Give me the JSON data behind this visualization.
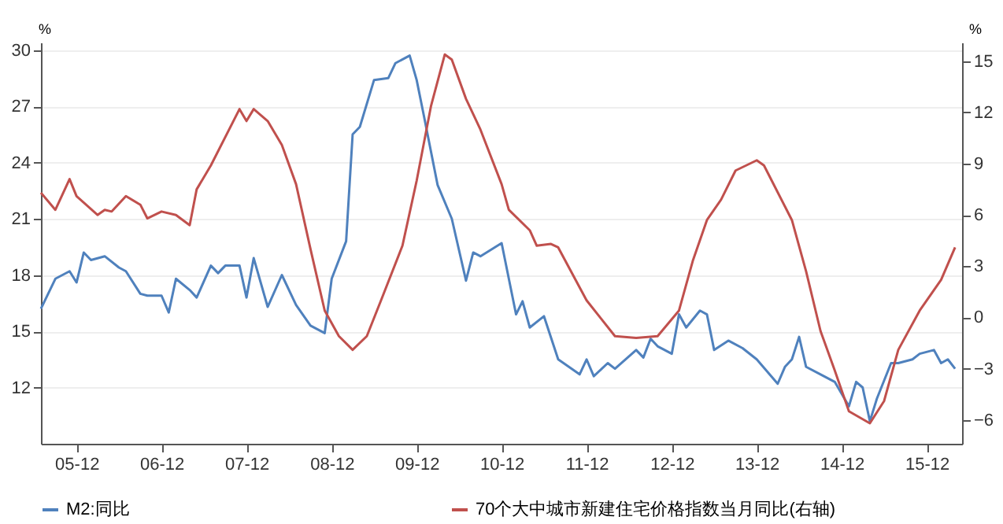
{
  "chart_data": {
    "type": "line",
    "ylabel": "%",
    "y2label": "%",
    "xlim": [
      "2005-07",
      "2016-05"
    ],
    "xticks": [
      {
        "value": "2005-12",
        "label": "05-12"
      },
      {
        "value": "2006-12",
        "label": "06-12"
      },
      {
        "value": "2007-12",
        "label": "07-12"
      },
      {
        "value": "2008-12",
        "label": "08-12"
      },
      {
        "value": "2009-12",
        "label": "09-12"
      },
      {
        "value": "2010-12",
        "label": "10-12"
      },
      {
        "value": "2011-12",
        "label": "11-12"
      },
      {
        "value": "2012-12",
        "label": "12-12"
      },
      {
        "value": "2013-12",
        "label": "13-12"
      },
      {
        "value": "2014-12",
        "label": "14-12"
      },
      {
        "value": "2015-12",
        "label": "15-12"
      }
    ],
    "ylim": [
      9,
      30.4
    ],
    "yticks": [
      12,
      15,
      18,
      21,
      24,
      27,
      30
    ],
    "y2lim": [
      -7.4,
      16.1
    ],
    "y2ticks": [
      -6,
      -3,
      0,
      3,
      6,
      9,
      12,
      15
    ],
    "grid": "y",
    "legend": "bottom",
    "marker": "none",
    "line_style": "solid",
    "series": [
      {
        "name": "M2:同比",
        "color": "#4f81bd",
        "x": [
          "2005-07",
          "2005-09",
          "2005-11",
          "2005-12",
          "2006-01",
          "2006-02",
          "2006-04",
          "2006-06",
          "2006-07",
          "2006-09",
          "2006-10",
          "2006-12",
          "2007-01",
          "2007-02",
          "2007-04",
          "2007-05",
          "2007-07",
          "2007-08",
          "2007-09",
          "2007-11",
          "2007-12",
          "2008-01",
          "2008-03",
          "2008-05",
          "2008-07",
          "2008-09",
          "2008-11",
          "2008-12",
          "2009-02",
          "2009-03",
          "2009-04",
          "2009-06",
          "2009-08",
          "2009-09",
          "2009-11",
          "2009-12",
          "2010-01",
          "2010-03",
          "2010-05",
          "2010-07",
          "2010-08",
          "2010-09",
          "2010-12",
          "2011-02",
          "2011-03",
          "2011-04",
          "2011-06",
          "2011-08",
          "2011-11",
          "2011-12",
          "2012-01",
          "2012-03",
          "2012-04",
          "2012-07",
          "2012-08",
          "2012-09",
          "2012-10",
          "2012-12",
          "2013-01",
          "2013-02",
          "2013-04",
          "2013-05",
          "2013-06",
          "2013-08",
          "2013-10",
          "2013-12",
          "2014-03",
          "2014-04",
          "2014-05",
          "2014-06",
          "2014-07",
          "2014-09",
          "2014-11",
          "2015-01",
          "2015-02",
          "2015-03",
          "2015-04",
          "2015-05",
          "2015-07",
          "2015-08",
          "2015-10",
          "2015-11",
          "2016-01",
          "2016-02",
          "2016-03",
          "2016-04"
        ],
        "values": [
          16.2,
          17.8,
          18.2,
          17.6,
          19.2,
          18.8,
          19.0,
          18.4,
          18.2,
          17.0,
          16.9,
          16.9,
          16.0,
          17.8,
          17.2,
          16.8,
          18.5,
          18.1,
          18.5,
          18.5,
          16.8,
          18.9,
          16.3,
          18.0,
          16.4,
          15.3,
          14.9,
          17.8,
          19.8,
          25.5,
          25.9,
          28.4,
          28.5,
          29.3,
          29.7,
          28.4,
          26.5,
          22.8,
          21.0,
          17.7,
          19.2,
          19.0,
          19.7,
          15.9,
          16.6,
          15.2,
          15.8,
          13.5,
          12.7,
          13.5,
          12.6,
          13.3,
          13.0,
          14.0,
          13.6,
          14.6,
          14.2,
          13.8,
          15.9,
          15.2,
          16.1,
          15.9,
          14.0,
          14.5,
          14.1,
          13.5,
          12.2,
          13.1,
          13.5,
          14.7,
          13.1,
          12.7,
          12.3,
          11.0,
          12.3,
          12.0,
          10.2,
          11.4,
          13.3,
          13.3,
          13.5,
          13.8,
          14.0,
          13.3,
          13.5,
          13.0
        ]
      },
      {
        "name": "70个大中城市新建住宅价格指数当月同比(右轴)",
        "color": "#c0504d",
        "axis": "y2",
        "x": [
          "2005-07",
          "2005-09",
          "2005-11",
          "2005-12",
          "2006-03",
          "2006-04",
          "2006-05",
          "2006-07",
          "2006-09",
          "2006-10",
          "2006-12",
          "2007-02",
          "2007-04",
          "2007-05",
          "2007-07",
          "2007-11",
          "2007-12",
          "2008-01",
          "2008-03",
          "2008-05",
          "2008-07",
          "2008-09",
          "2008-11",
          "2009-01",
          "2009-03",
          "2009-05",
          "2009-07",
          "2009-10",
          "2009-12",
          "2010-02",
          "2010-04",
          "2010-05",
          "2010-07",
          "2010-09",
          "2010-12",
          "2011-01",
          "2011-04",
          "2011-05",
          "2011-07",
          "2011-08",
          "2011-12",
          "2012-04",
          "2012-07",
          "2012-10",
          "2013-01",
          "2013-03",
          "2013-05",
          "2013-07",
          "2013-09",
          "2013-12",
          "2014-01",
          "2014-05",
          "2014-07",
          "2014-09",
          "2014-11",
          "2015-01",
          "2015-04",
          "2015-06",
          "2015-08",
          "2015-11",
          "2016-02",
          "2016-04"
        ],
        "values": [
          7.3,
          6.3,
          8.1,
          7.1,
          6.0,
          6.3,
          6.2,
          7.1,
          6.6,
          5.8,
          6.2,
          6.0,
          5.4,
          7.5,
          8.9,
          12.2,
          11.5,
          12.2,
          11.5,
          10.1,
          7.8,
          4.0,
          0.4,
          -1.1,
          -1.9,
          -1.1,
          1.0,
          4.2,
          8.0,
          12.4,
          15.4,
          15.1,
          12.8,
          11.0,
          7.8,
          6.3,
          5.1,
          4.2,
          4.3,
          4.1,
          1.0,
          -1.1,
          -1.2,
          -1.1,
          0.4,
          3.3,
          5.7,
          6.9,
          8.6,
          9.2,
          8.9,
          5.7,
          2.7,
          -0.8,
          -3.1,
          -5.5,
          -6.2,
          -4.9,
          -1.9,
          0.4,
          2.2,
          4.1
        ]
      }
    ]
  }
}
